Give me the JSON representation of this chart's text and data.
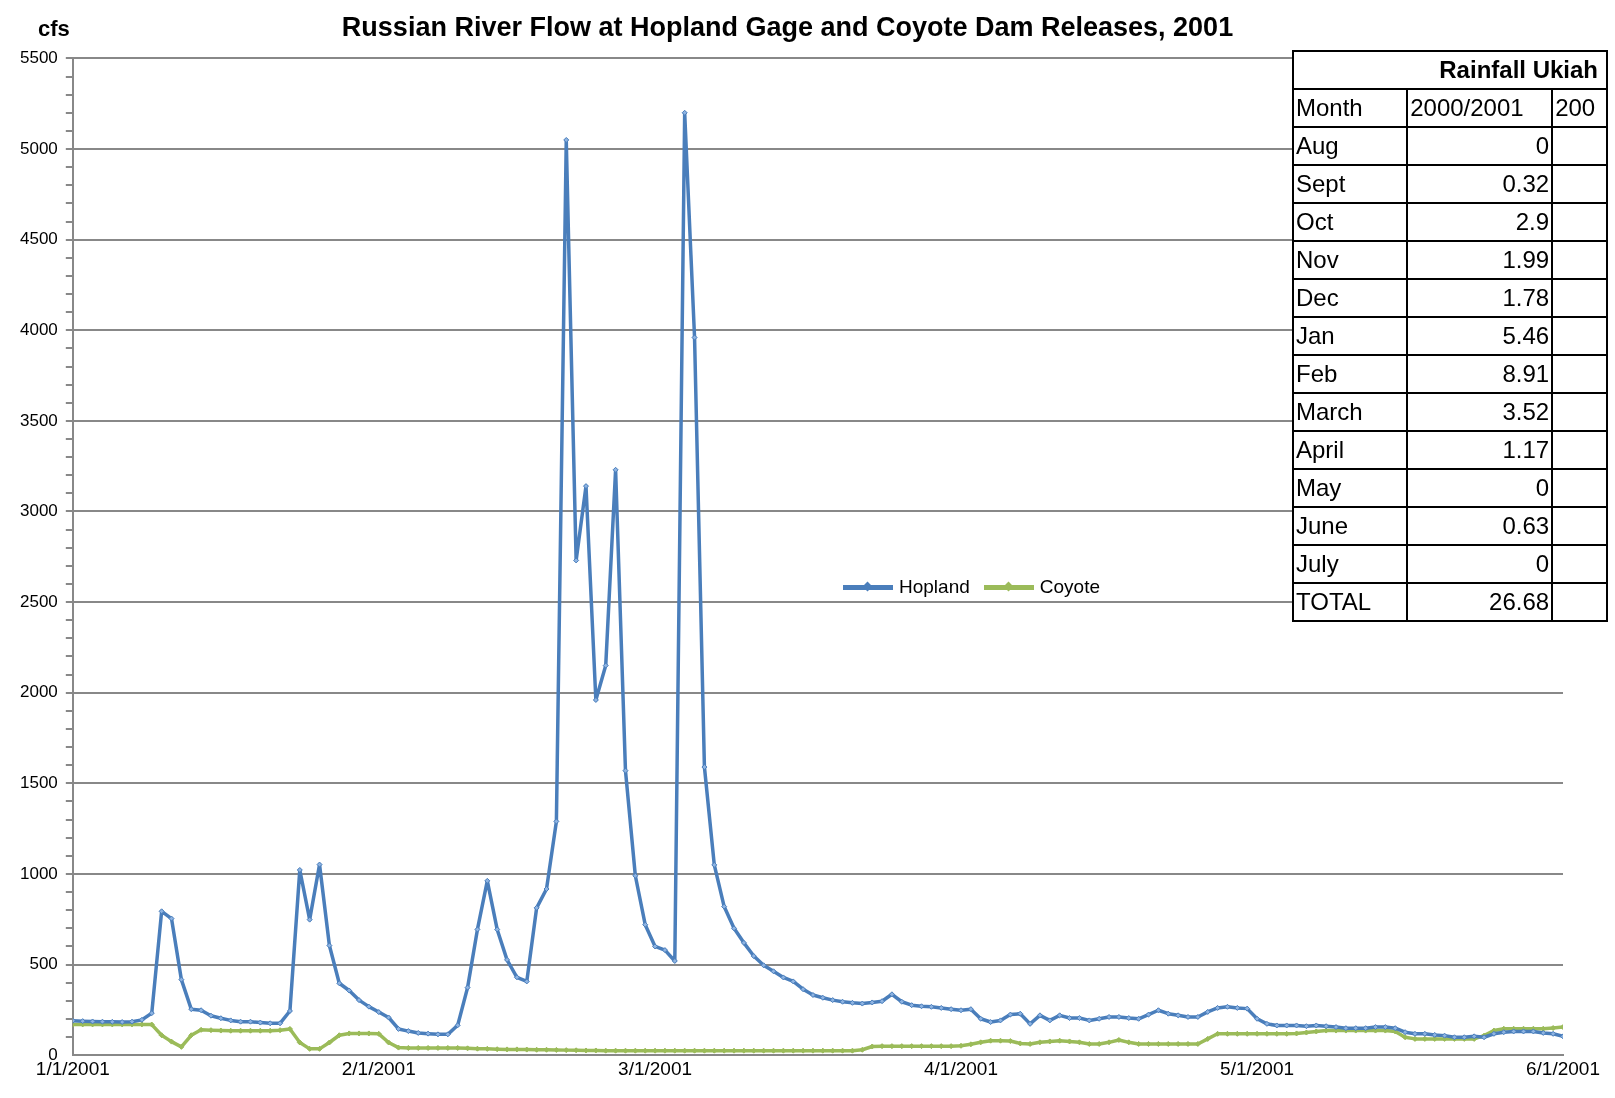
{
  "chart_data": [
    {
      "type": "line",
      "title": "Russian River Flow at Hopland Gage and Coyote Dam Releases, 2001",
      "ylabel": "cfs",
      "x": [
        "2001-01-01",
        "2001-01-02",
        "2001-01-03",
        "2001-01-04",
        "2001-01-05",
        "2001-01-06",
        "2001-01-07",
        "2001-01-08",
        "2001-01-09",
        "2001-01-10",
        "2001-01-11",
        "2001-01-12",
        "2001-01-13",
        "2001-01-14",
        "2001-01-15",
        "2001-01-16",
        "2001-01-17",
        "2001-01-18",
        "2001-01-19",
        "2001-01-20",
        "2001-01-21",
        "2001-01-22",
        "2001-01-23",
        "2001-01-24",
        "2001-01-25",
        "2001-01-26",
        "2001-01-27",
        "2001-01-28",
        "2001-01-29",
        "2001-01-30",
        "2001-01-31",
        "2001-02-01",
        "2001-02-02",
        "2001-02-03",
        "2001-02-04",
        "2001-02-05",
        "2001-02-06",
        "2001-02-07",
        "2001-02-08",
        "2001-02-09",
        "2001-02-10",
        "2001-02-11",
        "2001-02-12",
        "2001-02-13",
        "2001-02-14",
        "2001-02-15",
        "2001-02-16",
        "2001-02-17",
        "2001-02-18",
        "2001-02-19",
        "2001-02-20",
        "2001-02-21",
        "2001-02-22",
        "2001-02-23",
        "2001-02-24",
        "2001-02-25",
        "2001-02-26",
        "2001-02-27",
        "2001-02-28",
        "2001-03-01",
        "2001-03-02",
        "2001-03-03",
        "2001-03-04",
        "2001-03-05",
        "2001-03-06",
        "2001-03-07",
        "2001-03-08",
        "2001-03-09",
        "2001-03-10",
        "2001-03-11",
        "2001-03-12",
        "2001-03-13",
        "2001-03-14",
        "2001-03-15",
        "2001-03-16",
        "2001-03-17",
        "2001-03-18",
        "2001-03-19",
        "2001-03-20",
        "2001-03-21",
        "2001-03-22",
        "2001-03-23",
        "2001-03-24",
        "2001-03-25",
        "2001-03-26",
        "2001-03-27",
        "2001-03-28",
        "2001-03-29",
        "2001-03-30",
        "2001-03-31",
        "2001-04-01",
        "2001-04-02",
        "2001-04-03",
        "2001-04-04",
        "2001-04-05",
        "2001-04-06",
        "2001-04-07",
        "2001-04-08",
        "2001-04-09",
        "2001-04-10",
        "2001-04-11",
        "2001-04-12",
        "2001-04-13",
        "2001-04-14",
        "2001-04-15",
        "2001-04-16",
        "2001-04-17",
        "2001-04-18",
        "2001-04-19",
        "2001-04-20",
        "2001-04-21",
        "2001-04-22",
        "2001-04-23",
        "2001-04-24",
        "2001-04-25",
        "2001-04-26",
        "2001-04-27",
        "2001-04-28",
        "2001-04-29",
        "2001-04-30",
        "2001-05-01",
        "2001-05-02",
        "2001-05-03",
        "2001-05-04",
        "2001-05-05",
        "2001-05-06",
        "2001-05-07",
        "2001-05-08",
        "2001-05-09",
        "2001-05-10",
        "2001-05-11",
        "2001-05-12",
        "2001-05-13",
        "2001-05-14",
        "2001-05-15",
        "2001-05-16",
        "2001-05-17",
        "2001-05-18",
        "2001-05-19",
        "2001-05-20",
        "2001-05-21",
        "2001-05-22",
        "2001-05-23",
        "2001-05-24",
        "2001-05-25",
        "2001-05-26",
        "2001-05-27",
        "2001-05-28",
        "2001-05-29",
        "2001-05-30",
        "2001-05-31",
        "2001-06-01"
      ],
      "series": [
        {
          "name": "Hopland",
          "color": "#4a7ebb",
          "values": [
            190,
            188,
            186,
            185,
            184,
            183,
            185,
            195,
            232,
            794,
            754,
            417,
            254,
            248,
            218,
            204,
            192,
            185,
            185,
            180,
            176,
            176,
            244,
            1022,
            748,
            1052,
            605,
            397,
            357,
            304,
            268,
            238,
            208,
            145,
            133,
            123,
            119,
            115,
            115,
            165,
            373,
            694,
            962,
            694,
            526,
            430,
            407,
            813,
            917,
            1290,
            5050,
            2730,
            3140,
            1960,
            2150,
            3230,
            1570,
            990,
            720,
            600,
            580,
            520,
            5200,
            3960,
            1590,
            1050,
            820,
            700,
            620,
            547,
            496,
            463,
            429,
            407,
            364,
            332,
            317,
            304,
            295,
            289,
            285,
            291,
            298,
            336,
            295,
            276,
            270,
            267,
            261,
            254,
            248,
            254,
            201,
            183,
            192,
            224,
            229,
            173,
            220,
            192,
            220,
            205,
            205,
            192,
            201,
            211,
            211,
            205,
            201,
            224,
            248,
            229,
            220,
            211,
            211,
            239,
            261,
            267,
            261,
            257,
            201,
            173,
            164,
            164,
            164,
            160,
            164,
            160,
            155,
            149,
            149,
            149,
            155,
            155,
            149,
            127,
            118,
            118,
            112,
            108,
            99,
            99,
            104,
            99,
            118,
            127,
            131,
            131,
            131,
            123,
            118,
            104
          ]
        },
        {
          "name": "Coyote",
          "color": "#9bbb59",
          "values": [
            170,
            170,
            170,
            170,
            170,
            170,
            170,
            170,
            169,
            110,
            75,
            46,
            110,
            140,
            138,
            136,
            135,
            135,
            135,
            135,
            135,
            138,
            145,
            70,
            35,
            35,
            70,
            110,
            120,
            120,
            120,
            118,
            70,
            42,
            40,
            40,
            40,
            40,
            40,
            40,
            38,
            36,
            35,
            33,
            32,
            32,
            31,
            30,
            30,
            29,
            28,
            27,
            26,
            26,
            25,
            25,
            25,
            25,
            25,
            25,
            25,
            25,
            25,
            25,
            25,
            25,
            25,
            25,
            25,
            25,
            25,
            25,
            25,
            25,
            25,
            25,
            25,
            25,
            25,
            25,
            30,
            48,
            50,
            50,
            50,
            50,
            50,
            50,
            50,
            50,
            52,
            60,
            71,
            80,
            80,
            78,
            65,
            62,
            71,
            76,
            80,
            76,
            71,
            62,
            62,
            71,
            84,
            71,
            62,
            62,
            62,
            62,
            62,
            62,
            62,
            90,
            118,
            118,
            118,
            118,
            118,
            118,
            118,
            118,
            120,
            125,
            131,
            136,
            136,
            136,
            136,
            136,
            136,
            136,
            131,
            99,
            90,
            90,
            90,
            90,
            90,
            90,
            90,
            108,
            136,
            146,
            146,
            146,
            146,
            146,
            150,
            155
          ]
        }
      ],
      "xlim": [
        "2001-01-01",
        "2001-06-01"
      ],
      "xticks": [
        {
          "value": "2001-01-01",
          "label": "1/1/2001"
        },
        {
          "value": "2001-02-01",
          "label": "2/1/2001"
        },
        {
          "value": "2001-03-01",
          "label": "3/1/2001"
        },
        {
          "value": "2001-04-01",
          "label": "4/1/2001"
        },
        {
          "value": "2001-05-01",
          "label": "5/1/2001"
        },
        {
          "value": "2001-06-01",
          "label": "6/1/2001"
        }
      ],
      "ylim": [
        0,
        5500
      ],
      "yticks": [
        0,
        {
          "value": 100,
          "label": null
        },
        {
          "value": 200,
          "label": null
        },
        {
          "value": 300,
          "label": null
        },
        {
          "value": 400,
          "label": null
        },
        500,
        {
          "value": 600,
          "label": null
        },
        {
          "value": 700,
          "label": null
        },
        {
          "value": 800,
          "label": null
        },
        {
          "value": 900,
          "label": null
        },
        1000,
        {
          "value": 1100,
          "label": null
        },
        {
          "value": 1200,
          "label": null
        },
        {
          "value": 1300,
          "label": null
        },
        {
          "value": 1400,
          "label": null
        },
        1500,
        {
          "value": 1600,
          "label": null
        },
        {
          "value": 1700,
          "label": null
        },
        {
          "value": 1800,
          "label": null
        },
        {
          "value": 1900,
          "label": null
        },
        2000,
        {
          "value": 2100,
          "label": null
        },
        {
          "value": 2200,
          "label": null
        },
        {
          "value": 2300,
          "label": null
        },
        {
          "value": 2400,
          "label": null
        },
        2500,
        {
          "value": 2600,
          "label": null
        },
        {
          "value": 2700,
          "label": null
        },
        {
          "value": 2800,
          "label": null
        },
        {
          "value": 2900,
          "label": null
        },
        3000,
        {
          "value": 3100,
          "label": null
        },
        {
          "value": 3200,
          "label": null
        },
        {
          "value": 3300,
          "label": null
        },
        {
          "value": 3400,
          "label": null
        },
        3500,
        {
          "value": 3600,
          "label": null
        },
        {
          "value": 3700,
          "label": null
        },
        {
          "value": 3800,
          "label": null
        },
        {
          "value": 3900,
          "label": null
        },
        4000,
        {
          "value": 4100,
          "label": null
        },
        {
          "value": 4200,
          "label": null
        },
        {
          "value": 4300,
          "label": null
        },
        {
          "value": 4400,
          "label": null
        },
        4500,
        {
          "value": 4600,
          "label": null
        },
        {
          "value": 4700,
          "label": null
        },
        {
          "value": 4800,
          "label": null
        },
        {
          "value": 4900,
          "label": null
        },
        5000,
        {
          "value": 5100,
          "label": null
        },
        {
          "value": 5200,
          "label": null
        },
        {
          "value": 5300,
          "label": null
        },
        {
          "value": 5400,
          "label": null
        },
        5500
      ],
      "grid": "y",
      "legend": "center",
      "marker": "diamond",
      "line_style": "solid"
    },
    {
      "type": "other",
      "title": "Rainfall Ukiah",
      "data_labels": true,
      "annotations": [
        "Month",
        "2000/2001",
        "200"
      ],
      "categories": [
        "Aug",
        "Sept",
        "Oct",
        "Nov",
        "Dec",
        "Jan",
        "Feb",
        "March",
        "April",
        "May",
        "June",
        "July",
        "TOTAL"
      ],
      "values": [
        0,
        0.32,
        2.9,
        1.99,
        1.78,
        5.46,
        8.91,
        3.52,
        1.17,
        0,
        0.63,
        0,
        26.68
      ]
    }
  ]
}
